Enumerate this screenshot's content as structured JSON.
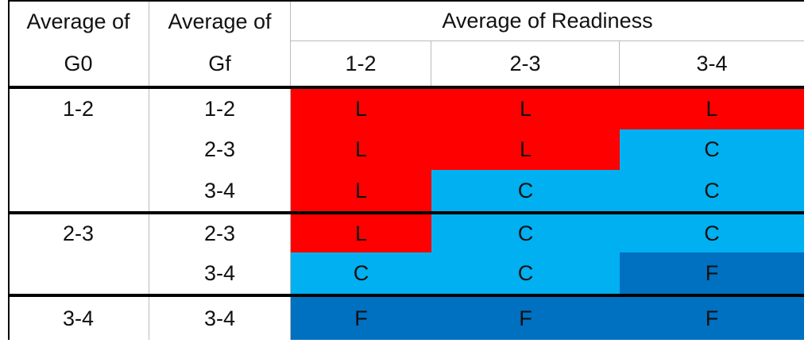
{
  "header": {
    "row1": [
      "Average of",
      "Average of",
      "Average of Readiness"
    ],
    "row2": [
      "G0",
      "Gf",
      "1-2",
      "2-3",
      "3-4"
    ]
  },
  "rows": [
    [
      "1-2",
      "1-2",
      "L",
      "L",
      "L"
    ],
    [
      null,
      "2-3",
      "L",
      "L",
      "C"
    ],
    [
      null,
      "3-4",
      "L",
      "C",
      "C"
    ],
    [
      "2-3",
      "2-3",
      "L",
      "C",
      "C"
    ],
    [
      null,
      "3-4",
      "C",
      "C",
      "F"
    ],
    [
      "3-4",
      "3-4",
      "F",
      "F",
      "F"
    ]
  ],
  "colors": {
    "L": "#ff0000",
    "C": "#00b0f0",
    "F": "#0070c0"
  }
}
